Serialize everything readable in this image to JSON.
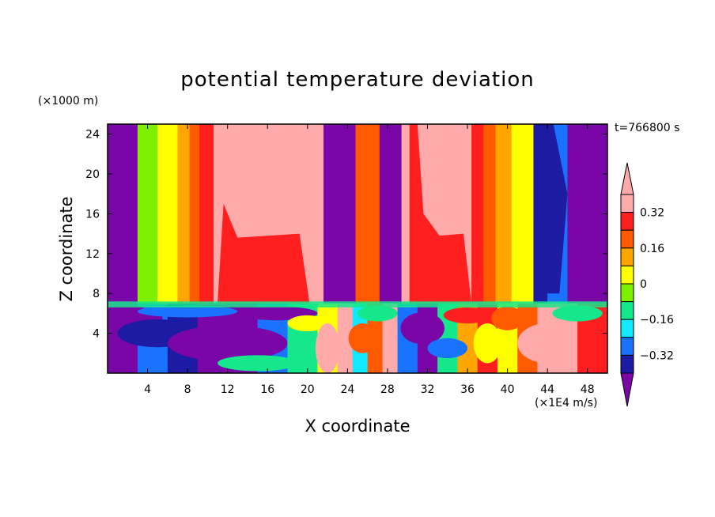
{
  "chart_data": {
    "type": "heatmap",
    "title": "potential temperature deviation",
    "xlabel": "X coordinate",
    "ylabel": "Z coordinate",
    "x_unit": "(×1E4 m/s)",
    "y_unit": "(×1000 m)",
    "time_label": "t=766800 s",
    "xlim": [
      0,
      50
    ],
    "ylim": [
      0,
      25
    ],
    "x_ticks": [
      4,
      8,
      12,
      16,
      20,
      24,
      28,
      32,
      36,
      40,
      44,
      48
    ],
    "y_ticks": [
      4,
      8,
      12,
      16,
      20,
      24
    ],
    "colorbar": {
      "extend": "both",
      "levels": [
        -0.4,
        -0.32,
        -0.24,
        -0.16,
        -0.08,
        0,
        0.08,
        0.16,
        0.24,
        0.32,
        0.4
      ],
      "labels": [
        "0.32",
        "0.16",
        "0",
        "−0.16",
        "−0.32"
      ],
      "label_values": [
        0.32,
        0.16,
        0,
        -0.16,
        -0.32
      ]
    },
    "upper_columns": [
      {
        "x": [
          0.0,
          3.0
        ],
        "value": -0.45
      },
      {
        "x": [
          3.0,
          5.0
        ],
        "value": -0.05
      },
      {
        "x": [
          5.0,
          7.0
        ],
        "value": 0.05
      },
      {
        "x": [
          7.0,
          8.2
        ],
        "value": 0.15
      },
      {
        "x": [
          8.2,
          9.2
        ],
        "value": 0.22
      },
      {
        "x": [
          9.2,
          10.6
        ],
        "value": 0.28
      },
      {
        "x": [
          10.6,
          20.2
        ],
        "value": 0.45
      },
      {
        "x": [
          20.2,
          21.6
        ],
        "value": 0.35
      },
      {
        "x": [
          21.6,
          24.8
        ],
        "value": -0.45
      },
      {
        "x": [
          24.8,
          27.2
        ],
        "value": 0.2
      },
      {
        "x": [
          27.2,
          29.4
        ],
        "value": -0.45
      },
      {
        "x": [
          29.4,
          31.0
        ],
        "value": 0.32
      },
      {
        "x": [
          31.0,
          36.4
        ],
        "value": 0.45
      },
      {
        "x": [
          36.4,
          37.6
        ],
        "value": 0.28
      },
      {
        "x": [
          37.6,
          38.8
        ],
        "value": 0.22
      },
      {
        "x": [
          38.8,
          40.4
        ],
        "value": 0.12
      },
      {
        "x": [
          40.4,
          42.6
        ],
        "value": 0.0
      },
      {
        "x": [
          42.6,
          44.0
        ],
        "value": -0.35
      },
      {
        "x": [
          44.0,
          46.0
        ],
        "value": -0.25
      },
      {
        "x": [
          46.0,
          50.0
        ],
        "value": -0.45
      }
    ],
    "lower_layer": {
      "z": [
        0,
        7.0
      ],
      "description_values": [
        -0.45,
        -0.3,
        -0.15,
        0.0,
        0.15,
        0.3,
        0.45
      ]
    }
  }
}
